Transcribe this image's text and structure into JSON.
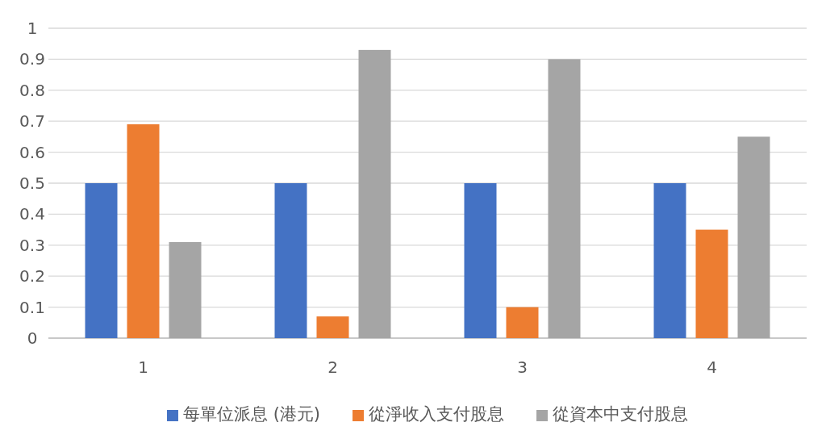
{
  "chart_data": {
    "type": "bar",
    "categories": [
      "1",
      "2",
      "3",
      "4"
    ],
    "series": [
      {
        "name": "每單位派息 (港元)",
        "color": "#4472c4",
        "values": [
          0.5,
          0.5,
          0.5,
          0.5
        ]
      },
      {
        "name": "從淨收入支付股息",
        "color": "#ed7d31",
        "values": [
          0.69,
          0.07,
          0.1,
          0.35
        ]
      },
      {
        "name": "從資本中支付股息",
        "color": "#a5a5a5",
        "values": [
          0.31,
          0.93,
          0.9,
          0.65
        ]
      }
    ],
    "ylim": [
      0,
      1
    ],
    "yticks": [
      0,
      0.1,
      0.2,
      0.3,
      0.4,
      0.5,
      0.6,
      0.7,
      0.8,
      0.9,
      1
    ],
    "grid": "y",
    "legend": "bottom"
  }
}
